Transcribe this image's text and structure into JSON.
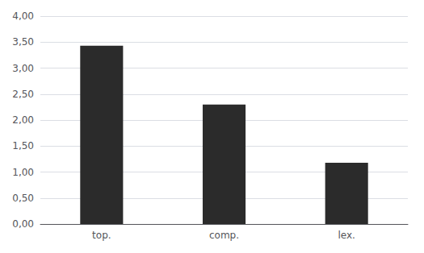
{
  "chart_data": {
    "type": "bar",
    "categories": [
      "top.",
      "comp.",
      "lex."
    ],
    "values": [
      3.43,
      2.3,
      1.18
    ],
    "color": "#2b2b2b",
    "ylim": [
      0,
      4.0
    ],
    "yticks": [
      {
        "value": 0.0,
        "label": "0,00"
      },
      {
        "value": 0.5,
        "label": "0,50"
      },
      {
        "value": 1.0,
        "label": "1,00"
      },
      {
        "value": 1.5,
        "label": "1,50"
      },
      {
        "value": 2.0,
        "label": "2,00"
      },
      {
        "value": 2.5,
        "label": "2,50"
      },
      {
        "value": 3.0,
        "label": "3,00"
      },
      {
        "value": 3.5,
        "label": "3,50"
      },
      {
        "value": 4.0,
        "label": "4,00"
      }
    ],
    "grid": true
  }
}
